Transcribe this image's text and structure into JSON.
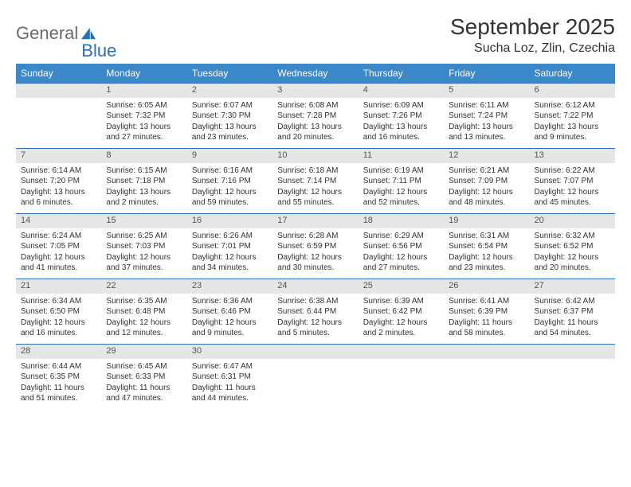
{
  "brand": {
    "part1": "General",
    "part2": "Blue"
  },
  "title": "September 2025",
  "location": "Sucha Loz, Zlin, Czechia",
  "colors": {
    "header_bg": "#3b87c8",
    "header_text": "#ffffff",
    "daynum_bg": "#e6e6e6",
    "border": "#2a6db8",
    "logo_gray": "#6a6a6a",
    "logo_blue": "#2a6db8"
  },
  "weekdays": [
    "Sunday",
    "Monday",
    "Tuesday",
    "Wednesday",
    "Thursday",
    "Friday",
    "Saturday"
  ],
  "weeks": [
    {
      "nums": [
        "",
        "1",
        "2",
        "3",
        "4",
        "5",
        "6"
      ],
      "cells": [
        {
          "sunrise": "",
          "sunset": "",
          "daylight": ""
        },
        {
          "sunrise": "Sunrise: 6:05 AM",
          "sunset": "Sunset: 7:32 PM",
          "daylight": "Daylight: 13 hours and 27 minutes."
        },
        {
          "sunrise": "Sunrise: 6:07 AM",
          "sunset": "Sunset: 7:30 PM",
          "daylight": "Daylight: 13 hours and 23 minutes."
        },
        {
          "sunrise": "Sunrise: 6:08 AM",
          "sunset": "Sunset: 7:28 PM",
          "daylight": "Daylight: 13 hours and 20 minutes."
        },
        {
          "sunrise": "Sunrise: 6:09 AM",
          "sunset": "Sunset: 7:26 PM",
          "daylight": "Daylight: 13 hours and 16 minutes."
        },
        {
          "sunrise": "Sunrise: 6:11 AM",
          "sunset": "Sunset: 7:24 PM",
          "daylight": "Daylight: 13 hours and 13 minutes."
        },
        {
          "sunrise": "Sunrise: 6:12 AM",
          "sunset": "Sunset: 7:22 PM",
          "daylight": "Daylight: 13 hours and 9 minutes."
        }
      ]
    },
    {
      "nums": [
        "7",
        "8",
        "9",
        "10",
        "11",
        "12",
        "13"
      ],
      "cells": [
        {
          "sunrise": "Sunrise: 6:14 AM",
          "sunset": "Sunset: 7:20 PM",
          "daylight": "Daylight: 13 hours and 6 minutes."
        },
        {
          "sunrise": "Sunrise: 6:15 AM",
          "sunset": "Sunset: 7:18 PM",
          "daylight": "Daylight: 13 hours and 2 minutes."
        },
        {
          "sunrise": "Sunrise: 6:16 AM",
          "sunset": "Sunset: 7:16 PM",
          "daylight": "Daylight: 12 hours and 59 minutes."
        },
        {
          "sunrise": "Sunrise: 6:18 AM",
          "sunset": "Sunset: 7:14 PM",
          "daylight": "Daylight: 12 hours and 55 minutes."
        },
        {
          "sunrise": "Sunrise: 6:19 AM",
          "sunset": "Sunset: 7:11 PM",
          "daylight": "Daylight: 12 hours and 52 minutes."
        },
        {
          "sunrise": "Sunrise: 6:21 AM",
          "sunset": "Sunset: 7:09 PM",
          "daylight": "Daylight: 12 hours and 48 minutes."
        },
        {
          "sunrise": "Sunrise: 6:22 AM",
          "sunset": "Sunset: 7:07 PM",
          "daylight": "Daylight: 12 hours and 45 minutes."
        }
      ]
    },
    {
      "nums": [
        "14",
        "15",
        "16",
        "17",
        "18",
        "19",
        "20"
      ],
      "cells": [
        {
          "sunrise": "Sunrise: 6:24 AM",
          "sunset": "Sunset: 7:05 PM",
          "daylight": "Daylight: 12 hours and 41 minutes."
        },
        {
          "sunrise": "Sunrise: 6:25 AM",
          "sunset": "Sunset: 7:03 PM",
          "daylight": "Daylight: 12 hours and 37 minutes."
        },
        {
          "sunrise": "Sunrise: 6:26 AM",
          "sunset": "Sunset: 7:01 PM",
          "daylight": "Daylight: 12 hours and 34 minutes."
        },
        {
          "sunrise": "Sunrise: 6:28 AM",
          "sunset": "Sunset: 6:59 PM",
          "daylight": "Daylight: 12 hours and 30 minutes."
        },
        {
          "sunrise": "Sunrise: 6:29 AM",
          "sunset": "Sunset: 6:56 PM",
          "daylight": "Daylight: 12 hours and 27 minutes."
        },
        {
          "sunrise": "Sunrise: 6:31 AM",
          "sunset": "Sunset: 6:54 PM",
          "daylight": "Daylight: 12 hours and 23 minutes."
        },
        {
          "sunrise": "Sunrise: 6:32 AM",
          "sunset": "Sunset: 6:52 PM",
          "daylight": "Daylight: 12 hours and 20 minutes."
        }
      ]
    },
    {
      "nums": [
        "21",
        "22",
        "23",
        "24",
        "25",
        "26",
        "27"
      ],
      "cells": [
        {
          "sunrise": "Sunrise: 6:34 AM",
          "sunset": "Sunset: 6:50 PM",
          "daylight": "Daylight: 12 hours and 16 minutes."
        },
        {
          "sunrise": "Sunrise: 6:35 AM",
          "sunset": "Sunset: 6:48 PM",
          "daylight": "Daylight: 12 hours and 12 minutes."
        },
        {
          "sunrise": "Sunrise: 6:36 AM",
          "sunset": "Sunset: 6:46 PM",
          "daylight": "Daylight: 12 hours and 9 minutes."
        },
        {
          "sunrise": "Sunrise: 6:38 AM",
          "sunset": "Sunset: 6:44 PM",
          "daylight": "Daylight: 12 hours and 5 minutes."
        },
        {
          "sunrise": "Sunrise: 6:39 AM",
          "sunset": "Sunset: 6:42 PM",
          "daylight": "Daylight: 12 hours and 2 minutes."
        },
        {
          "sunrise": "Sunrise: 6:41 AM",
          "sunset": "Sunset: 6:39 PM",
          "daylight": "Daylight: 11 hours and 58 minutes."
        },
        {
          "sunrise": "Sunrise: 6:42 AM",
          "sunset": "Sunset: 6:37 PM",
          "daylight": "Daylight: 11 hours and 54 minutes."
        }
      ]
    },
    {
      "nums": [
        "28",
        "29",
        "30",
        "",
        "",
        "",
        ""
      ],
      "cells": [
        {
          "sunrise": "Sunrise: 6:44 AM",
          "sunset": "Sunset: 6:35 PM",
          "daylight": "Daylight: 11 hours and 51 minutes."
        },
        {
          "sunrise": "Sunrise: 6:45 AM",
          "sunset": "Sunset: 6:33 PM",
          "daylight": "Daylight: 11 hours and 47 minutes."
        },
        {
          "sunrise": "Sunrise: 6:47 AM",
          "sunset": "Sunset: 6:31 PM",
          "daylight": "Daylight: 11 hours and 44 minutes."
        },
        {
          "sunrise": "",
          "sunset": "",
          "daylight": ""
        },
        {
          "sunrise": "",
          "sunset": "",
          "daylight": ""
        },
        {
          "sunrise": "",
          "sunset": "",
          "daylight": ""
        },
        {
          "sunrise": "",
          "sunset": "",
          "daylight": ""
        }
      ]
    }
  ]
}
